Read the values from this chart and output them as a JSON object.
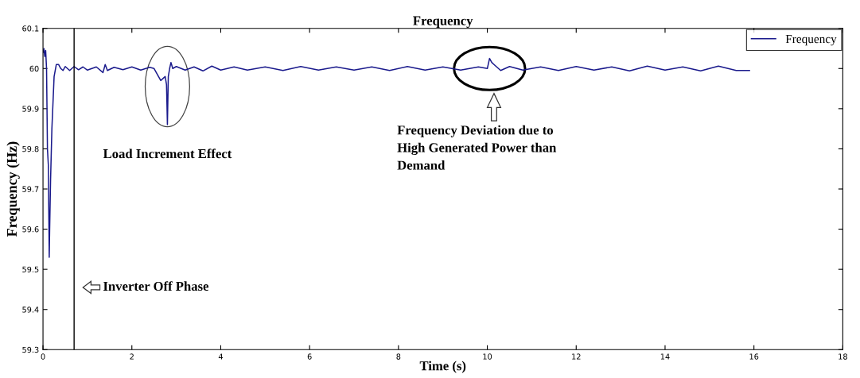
{
  "chart_data": {
    "type": "line",
    "title": "Frequency",
    "xlabel": "Time (s)",
    "ylabel": "Frequency (Hz)",
    "xlim": [
      0,
      18
    ],
    "xticks": [
      0,
      2,
      4,
      6,
      8,
      10,
      12,
      14,
      16,
      18
    ],
    "ylim": [
      59.3,
      60.1
    ],
    "yticks": [
      59.3,
      59.4,
      59.5,
      59.6,
      59.7,
      59.8,
      59.9,
      60,
      60.1
    ],
    "grid": false,
    "legend": "top right",
    "line_style": "solid",
    "ref_lines": [
      {
        "axis": "x",
        "value": 0.7,
        "label": null,
        "color": "#000000",
        "line_style": "solid"
      }
    ],
    "annotations": [
      "Load Increment Effect",
      "Frequency Deviation due to\nHigh Generated Power than\nDemand",
      "Inverter Off Phase"
    ],
    "series": [
      {
        "name": "Frequency",
        "color": "#1a1a8c",
        "x": [
          0,
          0.02,
          0.04,
          0.06,
          0.08,
          0.1,
          0.12,
          0.14,
          0.15,
          0.17,
          0.2,
          0.25,
          0.3,
          0.35,
          0.4,
          0.45,
          0.5,
          0.6,
          0.7,
          0.8,
          0.9,
          1.0,
          1.2,
          1.35,
          1.4,
          1.45,
          1.6,
          1.8,
          2.0,
          2.2,
          2.4,
          2.5,
          2.55,
          2.6,
          2.65,
          2.7,
          2.75,
          2.78,
          2.8,
          2.82,
          2.85,
          2.88,
          2.92,
          3.0,
          3.2,
          3.4,
          3.6,
          3.8,
          4.0,
          4.3,
          4.6,
          5.0,
          5.4,
          5.8,
          6.2,
          6.6,
          7.0,
          7.4,
          7.8,
          8.2,
          8.6,
          9.0,
          9.4,
          9.8,
          10.0,
          10.05,
          10.1,
          10.15,
          10.3,
          10.5,
          10.8,
          11.2,
          11.6,
          12.0,
          12.4,
          12.8,
          13.2,
          13.6,
          14.0,
          14.4,
          14.8,
          15.2,
          15.6,
          15.9
        ],
        "values": [
          60.04,
          60.05,
          60.03,
          60.045,
          60.0,
          59.8,
          59.76,
          59.53,
          59.6,
          59.72,
          59.85,
          59.98,
          60.01,
          60.01,
          60.0,
          59.995,
          60.005,
          59.995,
          60.005,
          59.997,
          60.004,
          59.996,
          60.004,
          59.99,
          60.01,
          59.995,
          60.003,
          59.997,
          60.004,
          59.996,
          60.003,
          60.0,
          59.99,
          59.98,
          59.97,
          59.975,
          59.98,
          59.96,
          59.86,
          59.98,
          60.0,
          60.015,
          60.0,
          60.005,
          59.996,
          60.004,
          59.994,
          60.006,
          59.996,
          60.004,
          59.996,
          60.004,
          59.995,
          60.005,
          59.996,
          60.004,
          59.996,
          60.004,
          59.995,
          60.005,
          59.996,
          60.004,
          59.996,
          60.004,
          60.0,
          60.025,
          60.015,
          60.01,
          59.995,
          60.005,
          59.996,
          60.004,
          59.995,
          60.005,
          59.996,
          60.004,
          59.994,
          60.006,
          59.996,
          60.004,
          59.994,
          60.006,
          59.995,
          59.995
        ]
      }
    ]
  }
}
